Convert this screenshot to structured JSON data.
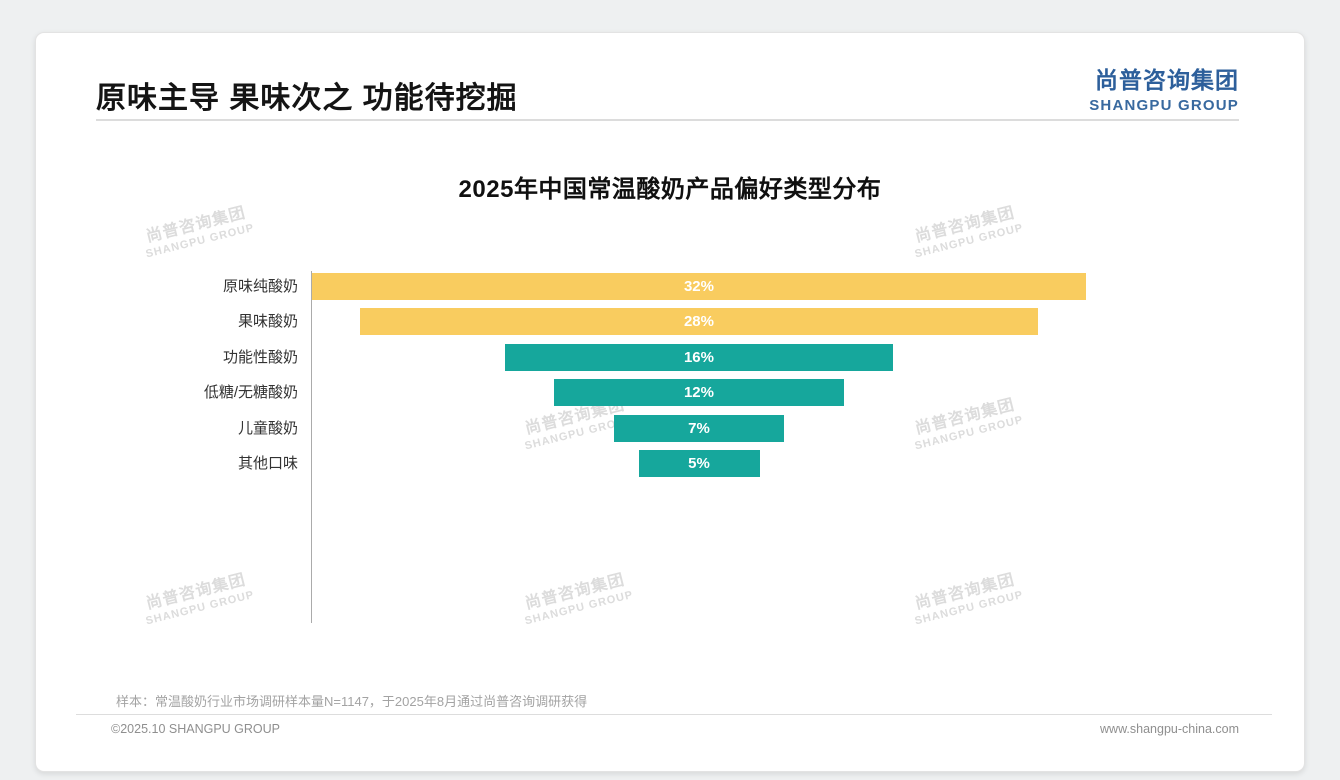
{
  "page": {
    "title": "原味主导 果味次之 功能待挖掘",
    "logo": {
      "cn": "尚普咨询集团",
      "en": "SHANGPU GROUP"
    },
    "watermark": {
      "cn": "尚普咨询集团",
      "en": "SHANGPU GROUP"
    },
    "footnote": "样本：常温酸奶行业市场调研样本量N=1147，于2025年8月通过尚普咨询调研获得",
    "footer": {
      "left": "©2025.10 SHANGPU GROUP",
      "right": "www.shangpu-china.com"
    }
  },
  "colors": {
    "accent_yellow": "#F9CC5F",
    "accent_teal": "#16A79C",
    "logo_blue": "#2D5F9B",
    "logo_blue_light": "#38699F"
  },
  "chart_data": {
    "type": "bar",
    "variant": "horizontal-centered-funnel",
    "title": "2025年中国常温酸奶产品偏好类型分布",
    "categories": [
      "原味纯酸奶",
      "果味酸奶",
      "功能性酸奶",
      "低糖/无糖酸奶",
      "儿童酸奶",
      "其他口味"
    ],
    "values": [
      32,
      28,
      16,
      12,
      7,
      5
    ],
    "value_labels": [
      "32%",
      "28%",
      "16%",
      "12%",
      "7%",
      "5%"
    ],
    "unit": "%",
    "xlim": [
      0,
      32
    ],
    "bar_colors": [
      "#F9CC5F",
      "#F9CC5F",
      "#16A79C",
      "#16A79C",
      "#16A79C",
      "#16A79C"
    ],
    "label_position": "inside-center",
    "legend": "none",
    "grid": "off"
  }
}
